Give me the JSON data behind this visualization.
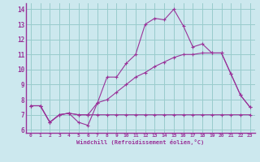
{
  "title": "",
  "xlabel": "Windchill (Refroidissement éolien,°C)",
  "ylabel": "",
  "bg_color": "#cce8ee",
  "line_color": "#993399",
  "grid_color": "#99cccc",
  "ylim": [
    5.8,
    14.4
  ],
  "xlim": [
    -0.5,
    23.5
  ],
  "yticks": [
    6,
    7,
    8,
    9,
    10,
    11,
    12,
    13,
    14
  ],
  "xticks": [
    0,
    1,
    2,
    3,
    4,
    5,
    6,
    7,
    8,
    9,
    10,
    11,
    12,
    13,
    14,
    15,
    16,
    17,
    18,
    19,
    20,
    21,
    22,
    23
  ],
  "series1": [
    7.6,
    7.6,
    6.5,
    7.0,
    7.1,
    6.5,
    6.3,
    7.8,
    9.5,
    9.5,
    10.4,
    11.0,
    13.0,
    13.4,
    13.3,
    14.0,
    12.9,
    11.5,
    11.7,
    11.1,
    11.1,
    9.7,
    8.3,
    7.5
  ],
  "series2": [
    7.6,
    7.6,
    6.5,
    7.0,
    7.1,
    7.0,
    7.0,
    7.8,
    8.0,
    8.5,
    9.0,
    9.5,
    9.8,
    10.2,
    10.5,
    10.8,
    11.0,
    11.0,
    11.1,
    11.1,
    11.1,
    9.7,
    8.3,
    7.5
  ],
  "series3": [
    7.6,
    7.6,
    6.5,
    7.0,
    7.1,
    7.0,
    7.0,
    7.0,
    7.0,
    7.0,
    7.0,
    7.0,
    7.0,
    7.0,
    7.0,
    7.0,
    7.0,
    7.0,
    7.0,
    7.0,
    7.0,
    7.0,
    7.0,
    7.0
  ]
}
